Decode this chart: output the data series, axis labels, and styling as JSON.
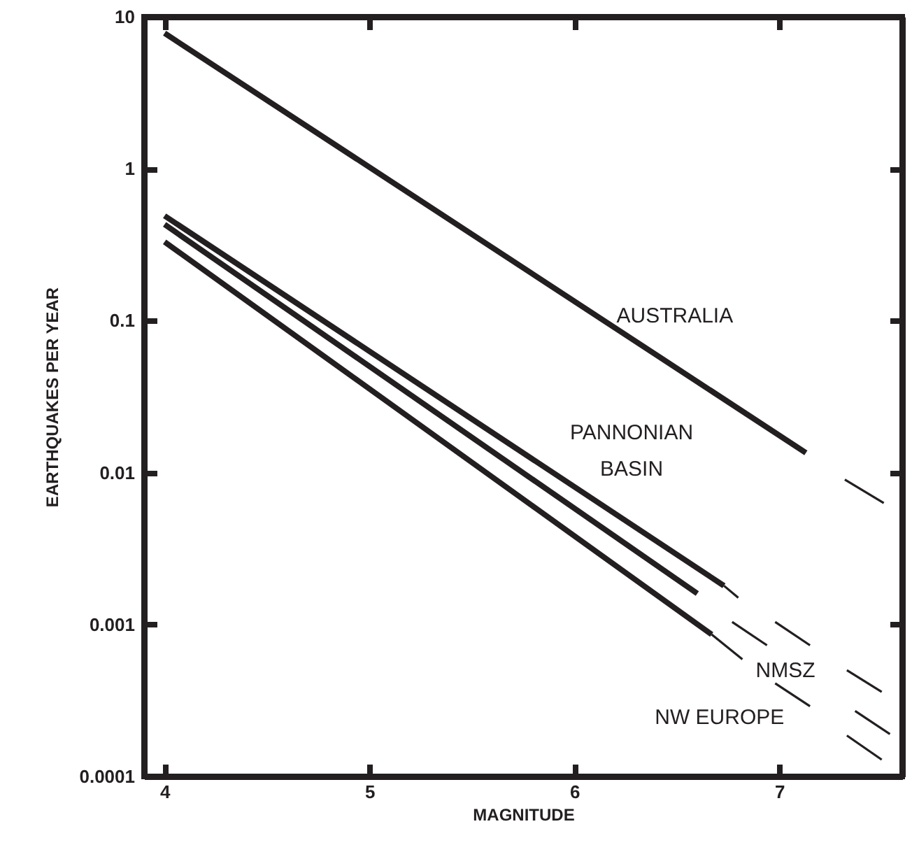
{
  "chart_data": {
    "type": "line",
    "xlabel": "MAGNITUDE",
    "ylabel": "EARTHQUAKES PER YEAR",
    "xlim": [
      3.9,
      7.6
    ],
    "xticks": [
      4,
      5,
      6,
      7
    ],
    "ylim": [
      0.0001,
      10
    ],
    "yticks": [
      0.0001,
      0.001,
      0.01,
      0.1,
      1,
      10
    ],
    "log": "y",
    "grid": false,
    "marker": "none",
    "series": [
      {
        "name": "AUSTRALIA",
        "color": "#231f20",
        "line_style": "solid",
        "x": [
          4,
          7.13
        ],
        "values": [
          7.8,
          0.0135
        ]
      },
      {
        "color": "#231f20",
        "line_style": "dashed",
        "x": [
          7.32,
          7.51
        ],
        "values": [
          0.009,
          0.0063
        ]
      },
      {
        "name": "PANNONIAN\nBASIN",
        "color": "#231f20",
        "line_style": "solid",
        "x": [
          4,
          6.73
        ],
        "values": [
          0.49,
          0.0018
        ]
      },
      {
        "color": "#231f20",
        "line_style": "dashed",
        "x": [
          6.73,
          6.8
        ],
        "values": [
          0.0018,
          0.0015
        ]
      },
      {
        "color": "#231f20",
        "line_style": "dashed",
        "x": [
          6.98,
          7.15
        ],
        "values": [
          0.00104,
          0.00073
        ]
      },
      {
        "color": "#231f20",
        "line_style": "dashed",
        "x": [
          7.33,
          7.5
        ],
        "values": [
          0.0005,
          0.00036
        ]
      },
      {
        "color": "#231f20",
        "line_style": "solid",
        "x": [
          4,
          6.6
        ],
        "values": [
          0.43,
          0.0016
        ]
      },
      {
        "name": "NMSZ",
        "color": "#231f20",
        "line_style": "dashed",
        "x": [
          6.77,
          6.94
        ],
        "values": [
          0.00104,
          0.00073
        ]
      },
      {
        "color": "#231f20",
        "line_style": "dashed",
        "x": [
          7.37,
          7.54
        ],
        "values": [
          0.00027,
          0.00019
        ]
      },
      {
        "color": "#231f20",
        "line_style": "solid",
        "x": [
          4,
          6.67
        ],
        "values": [
          0.33,
          0.00086
        ]
      },
      {
        "color": "#231f20",
        "line_style": "dashed",
        "x": [
          6.67,
          6.82
        ],
        "values": [
          0.00086,
          0.00059
        ]
      },
      {
        "name": "NW EUROPE",
        "color": "#231f20",
        "line_style": "dashed",
        "x": [
          6.98,
          7.15
        ],
        "values": [
          0.00041,
          0.00029
        ]
      },
      {
        "color": "#231f20",
        "line_style": "dashed",
        "x": [
          7.33,
          7.5
        ],
        "values": [
          0.000186,
          0.000129
        ]
      }
    ]
  }
}
